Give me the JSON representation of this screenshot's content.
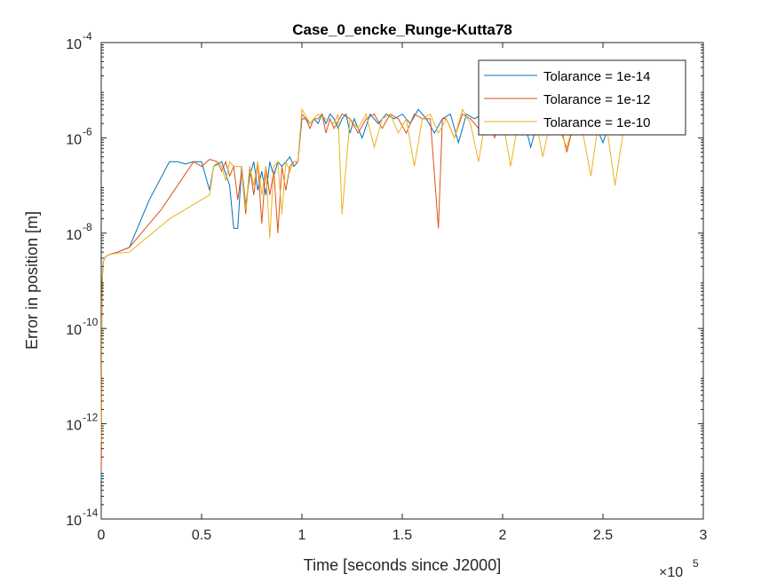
{
  "chart_data": {
    "type": "line",
    "title": "Case_0_encke_Runge-Kutta78",
    "xlabel": "Time [seconds since J2000]",
    "ylabel": "Error in position [m]",
    "x_exponent_label": "×10",
    "x_exponent": "5",
    "xlim": [
      0,
      3
    ],
    "ylim_exponent": [
      -14,
      -4
    ],
    "yscale": "log",
    "x_ticks": [
      "0",
      "0.5",
      "1",
      "1.5",
      "2",
      "2.5",
      "3"
    ],
    "y_ticks": [
      {
        "base": "10",
        "exp": "-14",
        "value": -14
      },
      {
        "base": "10",
        "exp": "-12",
        "value": -12
      },
      {
        "base": "10",
        "exp": "-10",
        "value": -10
      },
      {
        "base": "10",
        "exp": "-8",
        "value": -8
      },
      {
        "base": "10",
        "exp": "-6",
        "value": -6
      },
      {
        "base": "10",
        "exp": "-4",
        "value": -4
      }
    ],
    "grid": false,
    "legend_position": "top-right",
    "series": [
      {
        "name": "Tolarance = 1e-14",
        "color": "#0072BD",
        "x": [
          0.0,
          0.003,
          0.006,
          0.01,
          0.02,
          0.04,
          0.08,
          0.14,
          0.24,
          0.34,
          0.38,
          0.42,
          0.46,
          0.5,
          0.54,
          0.56,
          0.6,
          0.64,
          0.66,
          0.68,
          0.7,
          0.72,
          0.74,
          0.76,
          0.78,
          0.8,
          0.82,
          0.84,
          0.86,
          0.88,
          0.9,
          0.92,
          0.94,
          0.96,
          0.98,
          1.0,
          1.02,
          1.04,
          1.06,
          1.08,
          1.1,
          1.12,
          1.14,
          1.16,
          1.18,
          1.2,
          1.22,
          1.24,
          1.26,
          1.3,
          1.34,
          1.38,
          1.42,
          1.46,
          1.5,
          1.54,
          1.58,
          1.62,
          1.66,
          1.7,
          1.74,
          1.78,
          1.82,
          1.86,
          1.9,
          1.94,
          1.98,
          2.02,
          2.06,
          2.1,
          2.14,
          2.18,
          2.22,
          2.26,
          2.3,
          2.34,
          2.38,
          2.42,
          2.46,
          2.5,
          2.54,
          2.58,
          2.6
        ],
        "y_exp": [
          -13.2,
          -9.8,
          -8.9,
          -8.6,
          -8.5,
          -8.45,
          -8.4,
          -8.3,
          -7.3,
          -6.5,
          -6.5,
          -6.55,
          -6.5,
          -6.5,
          -7.1,
          -6.6,
          -6.5,
          -7.0,
          -7.9,
          -7.9,
          -6.6,
          -7.4,
          -6.8,
          -6.5,
          -7.1,
          -6.7,
          -7.2,
          -6.5,
          -6.8,
          -6.5,
          -6.6,
          -6.5,
          -6.4,
          -6.6,
          -6.5,
          -5.6,
          -5.6,
          -5.7,
          -5.6,
          -5.7,
          -5.5,
          -5.7,
          -5.5,
          -5.6,
          -5.8,
          -5.6,
          -5.5,
          -5.9,
          -5.6,
          -6.0,
          -5.5,
          -5.7,
          -5.5,
          -5.6,
          -5.5,
          -5.7,
          -5.4,
          -5.6,
          -5.9,
          -5.6,
          -5.5,
          -6.1,
          -5.5,
          -5.6,
          -5.5,
          -5.8,
          -5.6,
          -5.5,
          -5.8,
          -5.5,
          -6.2,
          -5.6,
          -5.8,
          -5.6,
          -5.7,
          -5.6,
          -5.8,
          -5.6,
          -5.7,
          -6.1,
          -5.6,
          -5.8,
          -5.9
        ]
      },
      {
        "name": "Tolarance = 1e-12",
        "color": "#D95319",
        "x": [
          0.0,
          0.003,
          0.006,
          0.01,
          0.02,
          0.04,
          0.08,
          0.14,
          0.3,
          0.46,
          0.5,
          0.54,
          0.58,
          0.6,
          0.62,
          0.64,
          0.66,
          0.68,
          0.7,
          0.72,
          0.74,
          0.76,
          0.78,
          0.8,
          0.82,
          0.84,
          0.86,
          0.88,
          0.9,
          0.92,
          0.94,
          0.96,
          0.98,
          1.0,
          1.02,
          1.04,
          1.06,
          1.08,
          1.1,
          1.12,
          1.14,
          1.16,
          1.2,
          1.24,
          1.28,
          1.32,
          1.36,
          1.4,
          1.44,
          1.48,
          1.52,
          1.56,
          1.6,
          1.64,
          1.68,
          1.7,
          1.72,
          1.76,
          1.8,
          1.84,
          1.88,
          1.92,
          1.96,
          2.0,
          2.04,
          2.08,
          2.12,
          2.16,
          2.2,
          2.24,
          2.28,
          2.32,
          2.36,
          2.4,
          2.44,
          2.48,
          2.52,
          2.56,
          2.6
        ],
        "y_exp": [
          -13.0,
          -9.6,
          -8.9,
          -8.6,
          -8.5,
          -8.45,
          -8.4,
          -8.3,
          -7.5,
          -6.5,
          -6.6,
          -6.45,
          -6.5,
          -6.7,
          -6.5,
          -6.8,
          -6.6,
          -7.3,
          -6.7,
          -7.6,
          -6.6,
          -7.2,
          -6.5,
          -7.8,
          -6.6,
          -7.2,
          -6.7,
          -8.0,
          -6.6,
          -7.1,
          -6.6,
          -6.5,
          -6.5,
          -5.5,
          -5.6,
          -5.8,
          -5.6,
          -5.6,
          -5.5,
          -5.9,
          -5.6,
          -5.8,
          -5.5,
          -5.6,
          -5.9,
          -5.6,
          -5.5,
          -5.8,
          -5.5,
          -5.6,
          -5.9,
          -5.5,
          -5.6,
          -5.6,
          -7.9,
          -5.6,
          -5.6,
          -6.0,
          -5.5,
          -5.6,
          -5.8,
          -5.6,
          -6.0,
          -5.5,
          -5.7,
          -5.6,
          -5.9,
          -5.6,
          -5.5,
          -5.8,
          -5.6,
          -6.3,
          -5.6,
          -5.8,
          -5.6,
          -5.9,
          -5.6,
          -5.7,
          -5.9
        ]
      },
      {
        "name": "Tolarance = 1e-10",
        "color": "#EDB120",
        "x": [
          0.0,
          0.003,
          0.006,
          0.01,
          0.02,
          0.04,
          0.08,
          0.14,
          0.34,
          0.54,
          0.56,
          0.58,
          0.6,
          0.62,
          0.64,
          0.66,
          0.7,
          0.72,
          0.74,
          0.76,
          0.78,
          0.8,
          0.82,
          0.84,
          0.86,
          0.88,
          0.9,
          0.92,
          0.94,
          0.96,
          0.98,
          1.0,
          1.04,
          1.08,
          1.12,
          1.16,
          1.18,
          1.2,
          1.24,
          1.28,
          1.32,
          1.36,
          1.4,
          1.44,
          1.48,
          1.52,
          1.56,
          1.6,
          1.64,
          1.68,
          1.72,
          1.76,
          1.8,
          1.84,
          1.88,
          1.92,
          1.96,
          2.0,
          2.04,
          2.08,
          2.12,
          2.16,
          2.2,
          2.24,
          2.28,
          2.32,
          2.36,
          2.4,
          2.44,
          2.48,
          2.52,
          2.56,
          2.6
        ],
        "y_exp": [
          -12.4,
          -9.5,
          -8.9,
          -8.6,
          -8.5,
          -8.45,
          -8.42,
          -8.4,
          -7.7,
          -7.2,
          -6.6,
          -6.5,
          -6.6,
          -6.9,
          -6.5,
          -6.6,
          -6.6,
          -7.5,
          -6.6,
          -7.0,
          -6.5,
          -7.2,
          -6.6,
          -8.1,
          -6.6,
          -6.5,
          -7.6,
          -6.5,
          -6.7,
          -6.5,
          -6.5,
          -5.4,
          -5.7,
          -5.5,
          -5.6,
          -5.7,
          -5.5,
          -7.6,
          -5.6,
          -5.8,
          -5.5,
          -6.2,
          -5.6,
          -5.5,
          -5.9,
          -5.6,
          -6.6,
          -5.6,
          -5.5,
          -5.9,
          -5.6,
          -6.0,
          -5.4,
          -5.7,
          -6.5,
          -5.5,
          -5.8,
          -5.6,
          -6.6,
          -5.6,
          -5.9,
          -5.5,
          -6.4,
          -5.6,
          -5.8,
          -6.2,
          -5.6,
          -5.9,
          -6.8,
          -5.6,
          -5.8,
          -7.0,
          -5.9
        ]
      }
    ]
  }
}
